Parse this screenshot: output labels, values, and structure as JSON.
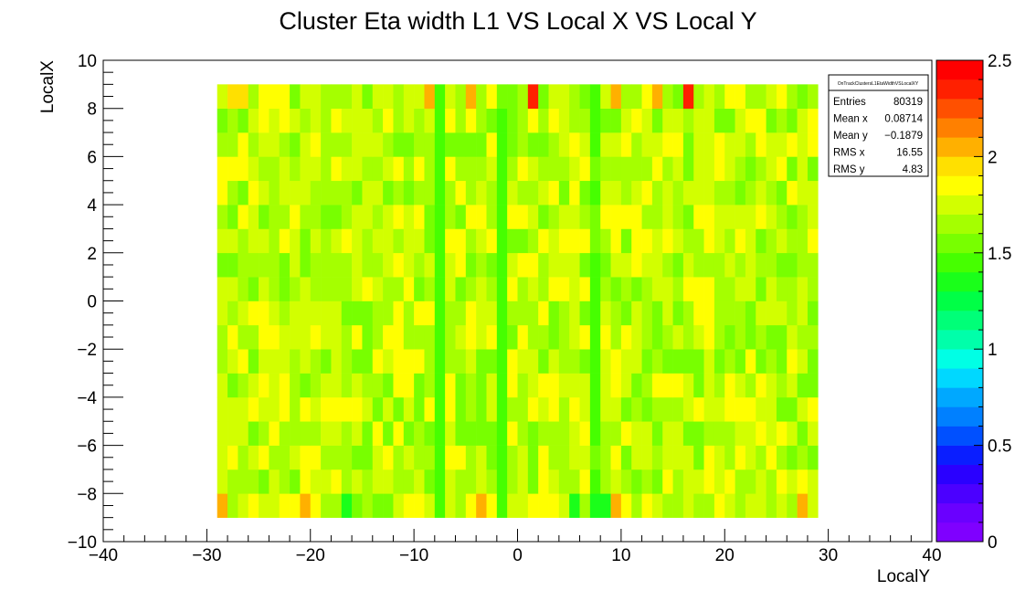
{
  "chart_data": {
    "type": "heatmap",
    "title": "Cluster Eta width L1 VS Local X VS Local Y",
    "xlabel": "LocalY",
    "ylabel": "LocalX",
    "xlim": [
      -40,
      40
    ],
    "ylim": [
      -10,
      10
    ],
    "zlim": [
      0,
      2.5
    ],
    "x_tick_labels": [
      "−40",
      "−30",
      "−20",
      "−10",
      "0",
      "10",
      "20",
      "30",
      "40"
    ],
    "y_tick_labels": [
      "−10",
      "−8",
      "−6",
      "−4",
      "−2",
      "0",
      "2",
      "4",
      "6",
      "8",
      "10"
    ],
    "z_tick_labels": [
      "0",
      "0.5",
      "1",
      "1.5",
      "2",
      "2.5"
    ],
    "grid": false,
    "legend": "stats box top-right",
    "bins": {
      "x_min": -29,
      "x_max": 29,
      "nx": 58,
      "y_min": -9,
      "y_max": 9,
      "ny": 18,
      "row_lo_to_hi_note": "row 0 = LocalX -9..-8, row 17 = LocalX 8..9",
      "strong_columns": [
        -7.5,
        -1.5,
        7.5
      ],
      "top_row_special": {
        "1.5": 2.35,
        "16.5": 2.35,
        "-8.5": 2.05,
        "-4.5": 2.05,
        "9.5": 2.05,
        "13.5": 2.05,
        "-27.5": 1.9,
        "-26.5": 1.9
      },
      "bottom_row_special": {
        "-28.5": 2.05,
        "-20.5": 2.05,
        "-3.5": 2.05,
        "9.5": 2.05,
        "27.5": 2.05,
        "-16.5": 1.3,
        "5.5": 1.35,
        "7.5": 1.3,
        "8.5": 1.3
      }
    },
    "palette": [
      "#7f00ff",
      "#6a00ff",
      "#4b00ff",
      "#2a00ff",
      "#0a1eff",
      "#0050ff",
      "#0080ff",
      "#00a8ff",
      "#00d8ff",
      "#00ffe5",
      "#00ffaa",
      "#00ff78",
      "#00ff46",
      "#1aff1a",
      "#46ff00",
      "#78ff00",
      "#a5ff00",
      "#d2ff00",
      "#ffff00",
      "#ffe000",
      "#ffb000",
      "#ff8000",
      "#ff5000",
      "#ff2000",
      "#ff0000"
    ]
  },
  "stats": {
    "name": "OnTrackClustersL1EtaWidthVSLocalXY",
    "rows": [
      {
        "label": "Entries",
        "value": "80319"
      },
      {
        "label": "Mean x",
        "value": "0.08714"
      },
      {
        "label": "Mean y",
        "value": "−0.1879"
      },
      {
        "label": "RMS x",
        "value": "16.55"
      },
      {
        "label": "RMS y",
        "value": "4.83"
      }
    ]
  }
}
